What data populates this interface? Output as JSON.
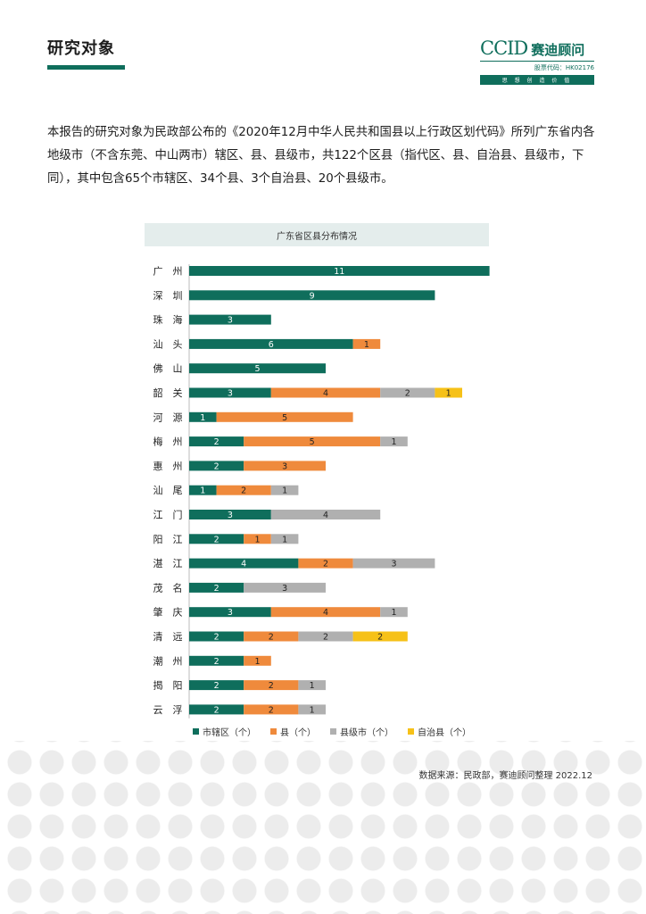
{
  "header": {
    "title": "研究对象",
    "logo": {
      "brand": "CCID",
      "name": "赛迪顾问",
      "stock_code": "股票代码：HK02176",
      "slogan": "思 想 创 造 价 值"
    }
  },
  "intro_text": "本报告的研究对象为民政部公布的《2020年12月中华人民共和国县以上行政区划代码》所列广东省内各地级市（不含东莞、中山两市）辖区、县、县级市，共122个区县（指代区、县、自治县、县级市，下同），其中包含65个市辖区、34个县、3个自治县、20个县级市。",
  "source": "数据来源：民政部，赛迪顾问整理  2022.12",
  "colors": {
    "district": "#0f6e5c",
    "county": "#ef8a3c",
    "county_city": "#b0b0b0",
    "autonomous": "#f6c118"
  },
  "chart_data": {
    "type": "bar",
    "orientation": "horizontal",
    "stacked": true,
    "title": "广东省区县分布情况",
    "categories": [
      "广　州",
      "深　圳",
      "珠　海",
      "汕　头",
      "佛　山",
      "韶　关",
      "河　源",
      "梅　州",
      "惠　州",
      "汕　尾",
      "江　门",
      "阳　江",
      "湛　江",
      "茂　名",
      "肇　庆",
      "清　远",
      "潮　州",
      "揭　阳",
      "云　浮"
    ],
    "series": [
      {
        "name": "市辖区（个）",
        "values": [
          11,
          9,
          3,
          6,
          5,
          3,
          1,
          2,
          2,
          1,
          3,
          2,
          4,
          2,
          3,
          2,
          2,
          2,
          2
        ]
      },
      {
        "name": "县（个）",
        "values": [
          0,
          0,
          0,
          1,
          0,
          4,
          5,
          5,
          3,
          2,
          0,
          1,
          2,
          0,
          4,
          2,
          1,
          2,
          2
        ]
      },
      {
        "name": "县级市（个）",
        "values": [
          0,
          0,
          0,
          0,
          0,
          2,
          0,
          1,
          0,
          1,
          4,
          1,
          3,
          3,
          1,
          2,
          0,
          1,
          1
        ]
      },
      {
        "name": "自治县（个）",
        "values": [
          0,
          0,
          0,
          0,
          0,
          1,
          0,
          0,
          0,
          0,
          0,
          0,
          0,
          0,
          0,
          2,
          0,
          0,
          0
        ]
      }
    ],
    "legend_position": "bottom",
    "grid": false
  }
}
